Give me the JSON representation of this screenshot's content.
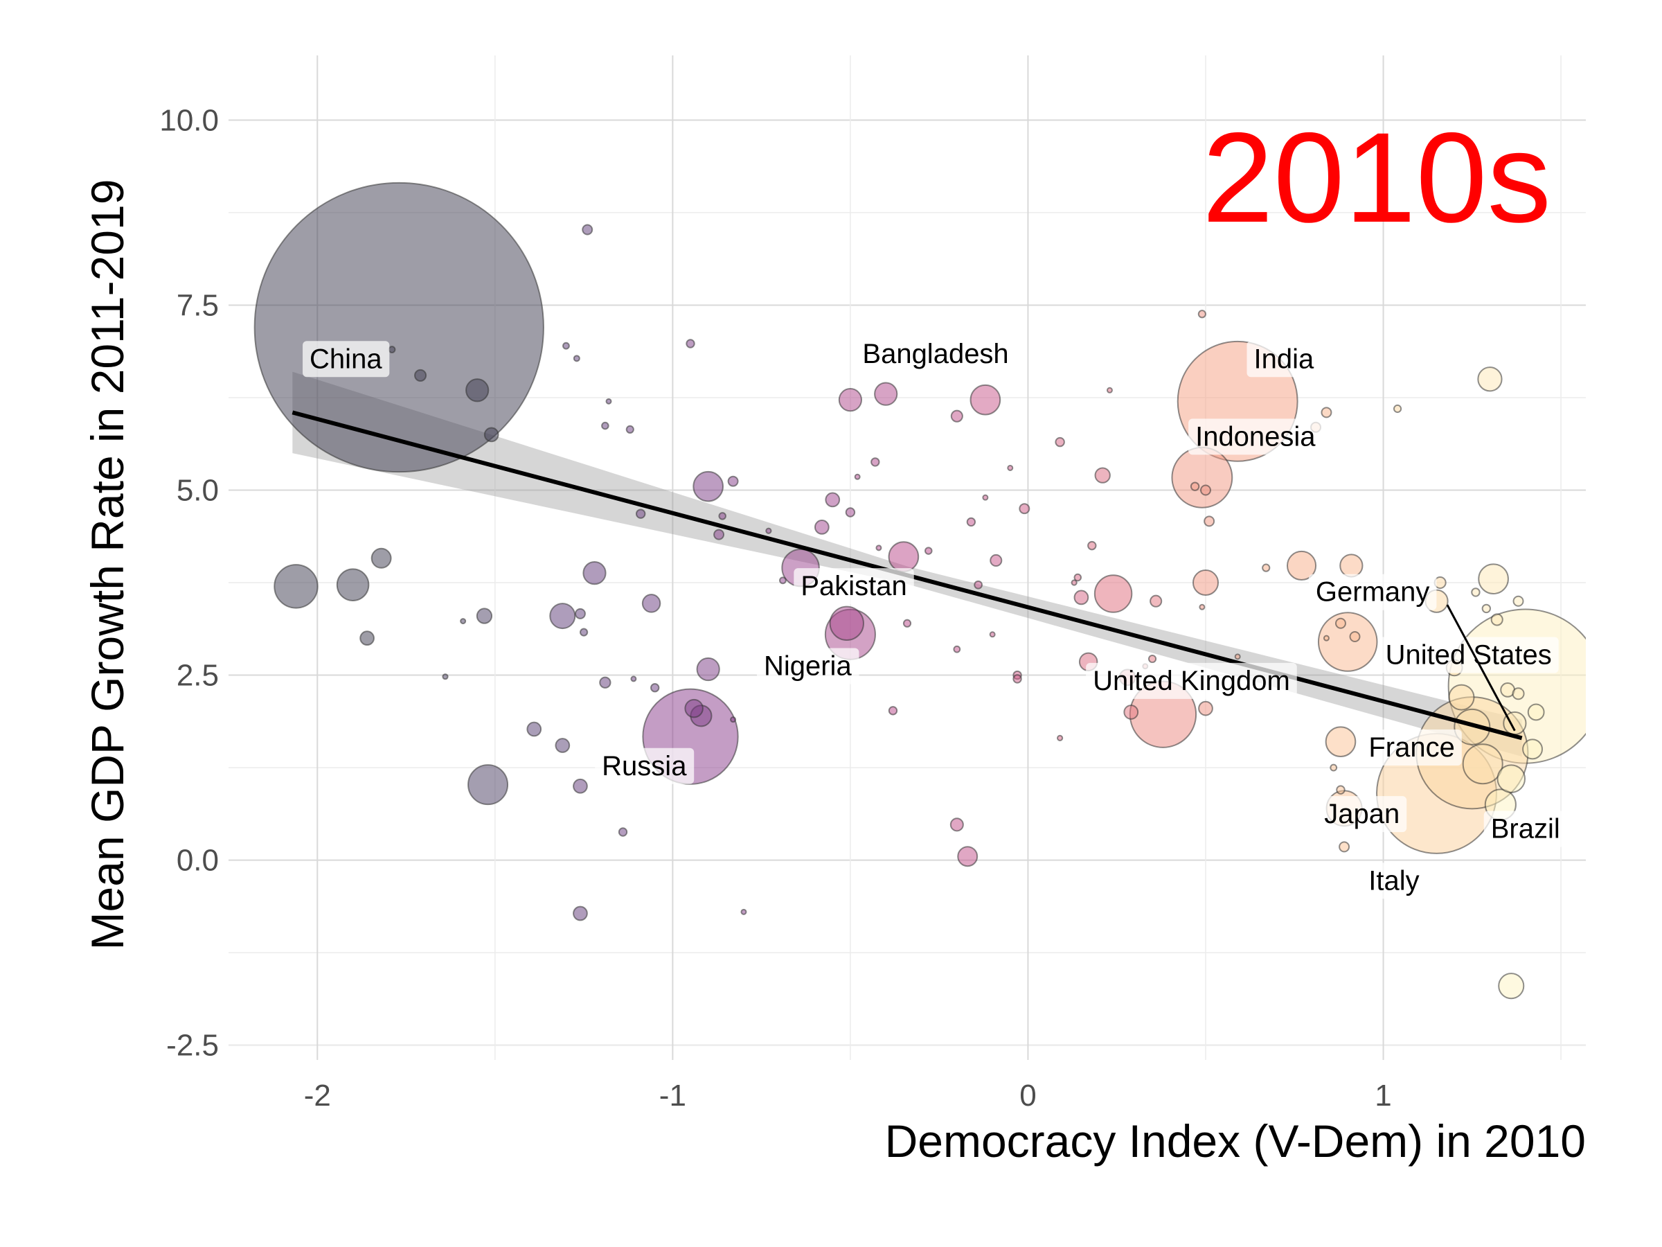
{
  "chart_data": {
    "type": "scatter",
    "title": "",
    "period_label": "2010s",
    "xlabel": "Democracy Index (V-Dem) in 2010",
    "ylabel": "Mean GDP Growth Rate in 2011-2019",
    "xlim": [
      -2.25,
      1.57
    ],
    "ylim": [
      -2.7,
      10.5
    ],
    "x_ticks": [
      -2,
      -1,
      0,
      1
    ],
    "x_tick_labels": [
      "-2",
      "-1",
      "0",
      "1"
    ],
    "y_ticks": [
      -2.5,
      0,
      2.5,
      5,
      7.5,
      10
    ],
    "y_tick_labels": [
      "-2.5",
      "0.0",
      "2.5",
      "5.0",
      "7.5",
      "10.0"
    ],
    "grid": true,
    "point_style": "bubbles sized by population, colored by democracy index, semi-transparent",
    "color_scale": [
      "#3d3b4f",
      "#5e3c78",
      "#8a3c8c",
      "#b9488a",
      "#e06c7c",
      "#f59f82",
      "#fbcf9a",
      "#fdf4c2"
    ],
    "trendline": {
      "type": "linear",
      "x_start": -2.07,
      "y_start": 6.05,
      "x_end": 1.39,
      "y_end": 1.65,
      "ci_start_halfwidth": 0.55,
      "ci_mid_halfwidth": 0.12,
      "ci_end_halfwidth": 0.25
    },
    "labels": [
      {
        "text": "China",
        "x": -1.92,
        "y": 6.65
      },
      {
        "text": "Bangladesh",
        "x": -0.26,
        "y": 6.72
      },
      {
        "text": "India",
        "x": 0.72,
        "y": 6.65
      },
      {
        "text": "Indonesia",
        "x": 0.64,
        "y": 5.6
      },
      {
        "text": "Pakistan",
        "x": -0.49,
        "y": 3.58
      },
      {
        "text": "Germany",
        "x": 0.97,
        "y": 3.5
      },
      {
        "text": "United States",
        "x": 1.24,
        "y": 2.65
      },
      {
        "text": "Nigeria",
        "x": -0.62,
        "y": 2.5
      },
      {
        "text": "United Kingdom",
        "x": 0.46,
        "y": 2.3
      },
      {
        "text": "France",
        "x": 1.08,
        "y": 1.4
      },
      {
        "text": "Russia",
        "x": -1.08,
        "y": 1.15
      },
      {
        "text": "Japan",
        "x": 0.94,
        "y": 0.5
      },
      {
        "text": "Brazil",
        "x": 1.4,
        "y": 0.3
      },
      {
        "text": "Italy",
        "x": 1.03,
        "y": -0.4
      }
    ],
    "points": [
      {
        "name": "China",
        "x": -1.77,
        "y": 7.2,
        "size": 1340,
        "color": "#3d3b4f"
      },
      {
        "x": -1.79,
        "y": 6.9,
        "size": 0.6,
        "color": "#3d3b4f"
      },
      {
        "x": -1.71,
        "y": 6.55,
        "size": 2,
        "color": "#3d3b4f"
      },
      {
        "x": -1.55,
        "y": 6.35,
        "size": 8,
        "color": "#3d3b4f"
      },
      {
        "x": -1.51,
        "y": 5.75,
        "size": 3,
        "color": "#3d3b4f"
      },
      {
        "x": -2.06,
        "y": 3.7,
        "size": 30,
        "color": "#3d3b4f"
      },
      {
        "x": -1.9,
        "y": 3.72,
        "size": 16,
        "color": "#3d3b4f"
      },
      {
        "x": -1.82,
        "y": 4.08,
        "size": 6,
        "color": "#3d3b4f"
      },
      {
        "x": -1.86,
        "y": 3.0,
        "size": 3,
        "color": "#3d3b4f"
      },
      {
        "x": -1.64,
        "y": 2.48,
        "size": 0.4,
        "color": "#4a3d62"
      },
      {
        "x": -1.59,
        "y": 3.23,
        "size": 0.3,
        "color": "#4a3d62"
      },
      {
        "x": -1.53,
        "y": 3.3,
        "size": 3.5,
        "color": "#4a3d62"
      },
      {
        "x": -1.52,
        "y": 1.02,
        "size": 25,
        "color": "#4a3d62"
      },
      {
        "x": -1.39,
        "y": 1.77,
        "size": 3,
        "color": "#553d72"
      },
      {
        "x": -1.31,
        "y": 1.55,
        "size": 3,
        "color": "#553d72"
      },
      {
        "x": -1.31,
        "y": 3.3,
        "size": 10,
        "color": "#5e3c78"
      },
      {
        "x": -1.3,
        "y": 6.95,
        "size": 0.6,
        "color": "#5e3c78"
      },
      {
        "x": -1.27,
        "y": 6.78,
        "size": 0.5,
        "color": "#5e3c78"
      },
      {
        "x": -1.26,
        "y": 3.33,
        "size": 1.5,
        "color": "#5e3c78"
      },
      {
        "x": -1.25,
        "y": 3.08,
        "size": 0.8,
        "color": "#5e3c78"
      },
      {
        "x": -1.24,
        "y": 8.52,
        "size": 1.5,
        "color": "#5e3c78"
      },
      {
        "x": -1.22,
        "y": 3.88,
        "size": 8,
        "color": "#62397a"
      },
      {
        "x": -1.26,
        "y": 1.0,
        "size": 3,
        "color": "#62397a"
      },
      {
        "x": -1.26,
        "y": -0.72,
        "size": 3,
        "color": "#62397a"
      },
      {
        "x": -1.18,
        "y": 6.2,
        "size": 0.2,
        "color": "#62397a"
      },
      {
        "x": -1.19,
        "y": 5.87,
        "size": 0.7,
        "color": "#62397a"
      },
      {
        "x": -1.19,
        "y": 2.4,
        "size": 1.8,
        "color": "#62397a"
      },
      {
        "x": -1.14,
        "y": 0.38,
        "size": 1,
        "color": "#6a3b80"
      },
      {
        "x": -1.12,
        "y": 5.82,
        "size": 0.8,
        "color": "#6a3b80"
      },
      {
        "x": -1.11,
        "y": 2.45,
        "size": 0.3,
        "color": "#6a3b80"
      },
      {
        "x": -1.09,
        "y": 4.68,
        "size": 1.2,
        "color": "#6a3b80"
      },
      {
        "x": -1.06,
        "y": 3.47,
        "size": 5,
        "color": "#6a3b80"
      },
      {
        "x": -1.05,
        "y": 2.33,
        "size": 1,
        "color": "#6a3b80"
      },
      {
        "name": "Russia",
        "x": -0.95,
        "y": 1.67,
        "size": 145,
        "color": "#8a3c8c"
      },
      {
        "x": -0.95,
        "y": 6.98,
        "size": 1,
        "color": "#7c3c86"
      },
      {
        "x": -0.94,
        "y": 2.05,
        "size": 5,
        "color": "#7c3c86"
      },
      {
        "x": -0.92,
        "y": 1.95,
        "size": 7,
        "color": "#7c3c86"
      },
      {
        "x": -0.9,
        "y": 5.05,
        "size": 14,
        "color": "#7c3c86"
      },
      {
        "x": -0.9,
        "y": 2.58,
        "size": 8,
        "color": "#7c3c86"
      },
      {
        "x": -0.87,
        "y": 4.4,
        "size": 1.5,
        "color": "#843c88"
      },
      {
        "x": -0.86,
        "y": 4.65,
        "size": 0.7,
        "color": "#843c88"
      },
      {
        "x": -0.83,
        "y": 5.12,
        "size": 1.5,
        "color": "#843c88"
      },
      {
        "x": -0.83,
        "y": 1.9,
        "size": 0.3,
        "color": "#843c88"
      },
      {
        "x": -0.8,
        "y": -0.7,
        "size": 0.2,
        "color": "#843c88"
      },
      {
        "x": -0.73,
        "y": 4.45,
        "size": 0.4,
        "color": "#8e3f8e"
      },
      {
        "x": -0.69,
        "y": 3.78,
        "size": 0.6,
        "color": "#8e3f8e"
      },
      {
        "name": "Pakistan",
        "x": -0.64,
        "y": 3.95,
        "size": 22,
        "color": "#9a428e"
      },
      {
        "x": -0.58,
        "y": 4.5,
        "size": 3,
        "color": "#a0448e"
      },
      {
        "x": -0.55,
        "y": 4.87,
        "size": 3,
        "color": "#a0448e"
      },
      {
        "x": -0.5,
        "y": 4.7,
        "size": 1.2,
        "color": "#a0448e"
      },
      {
        "name": "Nigeria",
        "x": -0.5,
        "y": 3.05,
        "size": 40,
        "color": "#a8468c"
      },
      {
        "x": -0.51,
        "y": 3.2,
        "size": 18,
        "color": "#a8468c"
      },
      {
        "x": -0.5,
        "y": 6.22,
        "size": 8,
        "color": "#b0488c"
      },
      {
        "name": "Bangladesh",
        "x": -0.4,
        "y": 6.3,
        "size": 8,
        "color": "#b0488c"
      },
      {
        "x": -0.48,
        "y": 5.18,
        "size": 0.3,
        "color": "#b0488c"
      },
      {
        "x": -0.43,
        "y": 5.38,
        "size": 1,
        "color": "#b0488c"
      },
      {
        "x": -0.42,
        "y": 4.22,
        "size": 0.3,
        "color": "#b0488c"
      },
      {
        "x": -0.35,
        "y": 4.1,
        "size": 14,
        "color": "#b9488a"
      },
      {
        "x": -0.38,
        "y": 2.02,
        "size": 1,
        "color": "#b9488a"
      },
      {
        "x": -0.34,
        "y": 3.2,
        "size": 0.8,
        "color": "#b9488a"
      },
      {
        "x": -0.28,
        "y": 4.18,
        "size": 0.7,
        "color": "#b9488a"
      },
      {
        "x": -0.2,
        "y": 6.0,
        "size": 2,
        "color": "#c2508a"
      },
      {
        "x": -0.2,
        "y": 2.85,
        "size": 0.6,
        "color": "#c2508a"
      },
      {
        "x": -0.2,
        "y": 0.48,
        "size": 2.5,
        "color": "#c2508a"
      },
      {
        "x": -0.17,
        "y": 0.05,
        "size": 6,
        "color": "#c2508a"
      },
      {
        "x": -0.16,
        "y": 4.57,
        "size": 1,
        "color": "#c2508a"
      },
      {
        "x": -0.14,
        "y": 3.72,
        "size": 0.9,
        "color": "#c2508a"
      },
      {
        "x": -0.12,
        "y": 6.22,
        "size": 14,
        "color": "#c8568a"
      },
      {
        "x": -0.12,
        "y": 4.9,
        "size": 0.3,
        "color": "#c8568a"
      },
      {
        "x": -0.1,
        "y": 3.05,
        "size": 0.2,
        "color": "#c8568a"
      },
      {
        "x": -0.09,
        "y": 4.05,
        "size": 2,
        "color": "#c8568a"
      },
      {
        "x": -0.05,
        "y": 5.3,
        "size": 0.15,
        "color": "#c8568a"
      },
      {
        "x": -0.03,
        "y": 2.5,
        "size": 1,
        "color": "#cf5c88"
      },
      {
        "x": -0.03,
        "y": 2.45,
        "size": 1,
        "color": "#cf5c88"
      },
      {
        "x": -0.01,
        "y": 4.75,
        "size": 1.5,
        "color": "#cf5c88"
      },
      {
        "x": 0.09,
        "y": 5.65,
        "size": 1.2,
        "color": "#d66484"
      },
      {
        "x": 0.09,
        "y": 1.65,
        "size": 0.4,
        "color": "#d66484"
      },
      {
        "x": 0.13,
        "y": 3.75,
        "size": 0.4,
        "color": "#d66484"
      },
      {
        "x": 0.14,
        "y": 3.82,
        "size": 0.7,
        "color": "#d66484"
      },
      {
        "x": 0.15,
        "y": 3.55,
        "size": 3,
        "color": "#d66484"
      },
      {
        "x": 0.17,
        "y": 2.68,
        "size": 5,
        "color": "#db6a80"
      },
      {
        "x": 0.18,
        "y": 4.25,
        "size": 1,
        "color": "#db6a80"
      },
      {
        "x": 0.21,
        "y": 5.2,
        "size": 3.5,
        "color": "#db6a80"
      },
      {
        "x": 0.23,
        "y": 6.35,
        "size": 0.3,
        "color": "#db6a80"
      },
      {
        "x": 0.24,
        "y": 3.6,
        "size": 22,
        "color": "#e06c7c"
      },
      {
        "x": 0.28,
        "y": 2.47,
        "size": 4,
        "color": "#e47680"
      },
      {
        "x": 0.29,
        "y": 2.0,
        "size": 3,
        "color": "#e47680"
      },
      {
        "x": 0.33,
        "y": 2.62,
        "size": 0.2,
        "color": "#e47680"
      },
      {
        "x": 0.35,
        "y": 2.72,
        "size": 0.8,
        "color": "#e47680"
      },
      {
        "x": 0.36,
        "y": 3.5,
        "size": 2,
        "color": "#e47680"
      },
      {
        "name": "United Kingdom",
        "x": 0.38,
        "y": 1.97,
        "size": 70,
        "color": "#ec8880"
      },
      {
        "x": 0.49,
        "y": 3.42,
        "size": 0.15,
        "color": "#ee9080"
      },
      {
        "x": 0.5,
        "y": 2.05,
        "size": 3,
        "color": "#ee9080"
      },
      {
        "x": 0.49,
        "y": 7.38,
        "size": 0.8,
        "color": "#ee9080"
      },
      {
        "x": 0.5,
        "y": 5.0,
        "size": 1.5,
        "color": "#ee9080"
      },
      {
        "name": "Indonesia",
        "x": 0.49,
        "y": 5.17,
        "size": 58,
        "color": "#f29882"
      },
      {
        "x": 0.47,
        "y": 5.05,
        "size": 1,
        "color": "#f29882"
      },
      {
        "x": 0.51,
        "y": 4.58,
        "size": 1.5,
        "color": "#f29882"
      },
      {
        "x": 0.5,
        "y": 3.75,
        "size": 10,
        "color": "#f29882"
      },
      {
        "name": "India",
        "x": 0.59,
        "y": 6.2,
        "size": 230,
        "color": "#f59f82"
      },
      {
        "x": 0.59,
        "y": 2.75,
        "size": 0.15,
        "color": "#f59f82"
      },
      {
        "x": 0.67,
        "y": 3.95,
        "size": 0.8,
        "color": "#f8ad88"
      },
      {
        "x": 0.77,
        "y": 3.98,
        "size": 13,
        "color": "#f8ad88"
      },
      {
        "x": 0.81,
        "y": 5.85,
        "size": 1.5,
        "color": "#f8b48c"
      },
      {
        "x": 0.84,
        "y": 6.05,
        "size": 1.5,
        "color": "#f8b48c"
      },
      {
        "x": 0.84,
        "y": 3.0,
        "size": 0.3,
        "color": "#f8b48c"
      },
      {
        "name": "Germany",
        "x": 0.9,
        "y": 2.95,
        "size": 55,
        "color": "#fab890"
      },
      {
        "x": 0.88,
        "y": 3.2,
        "size": 1.5,
        "color": "#fab890"
      },
      {
        "x": 0.91,
        "y": 3.98,
        "size": 8,
        "color": "#fab890"
      },
      {
        "x": 0.92,
        "y": 3.02,
        "size": 1.5,
        "color": "#fab890"
      },
      {
        "name": "Japan",
        "x": 0.89,
        "y": 0.7,
        "size": 20,
        "color": "#fbc294"
      },
      {
        "x": 0.88,
        "y": 1.6,
        "size": 14,
        "color": "#fbc294"
      },
      {
        "x": 0.86,
        "y": 1.25,
        "size": 0.6,
        "color": "#fbc294"
      },
      {
        "x": 0.88,
        "y": 0.95,
        "size": 1,
        "color": "#fbc294"
      },
      {
        "x": 0.89,
        "y": 0.18,
        "size": 1.5,
        "color": "#fbc294"
      },
      {
        "name": "Italy",
        "x": 1.15,
        "y": 0.9,
        "size": 230,
        "color": "#fbcf9a"
      },
      {
        "name": "France",
        "x": 1.25,
        "y": 1.45,
        "size": 200,
        "color": "#fcd8a2"
      },
      {
        "x": 1.04,
        "y": 6.1,
        "size": 0.8,
        "color": "#fcd8a2"
      },
      {
        "x": 1.15,
        "y": 3.5,
        "size": 8,
        "color": "#fcd8a2"
      },
      {
        "x": 1.16,
        "y": 3.75,
        "size": 2,
        "color": "#fcd8a2"
      },
      {
        "x": 1.2,
        "y": 2.6,
        "size": 4,
        "color": "#fcdca8"
      },
      {
        "x": 1.22,
        "y": 2.2,
        "size": 10,
        "color": "#fcdca8"
      },
      {
        "x": 1.25,
        "y": 1.8,
        "size": 20,
        "color": "#fce0ae"
      },
      {
        "x": 1.28,
        "y": 1.3,
        "size": 25,
        "color": "#fce0ae"
      },
      {
        "x": 1.3,
        "y": 6.5,
        "size": 9,
        "color": "#fde8b6"
      },
      {
        "x": 1.31,
        "y": 3.8,
        "size": 14,
        "color": "#fde8b6"
      },
      {
        "x": 1.26,
        "y": 3.62,
        "size": 1,
        "color": "#fde8b6"
      },
      {
        "x": 1.29,
        "y": 3.4,
        "size": 1,
        "color": "#fde8b6"
      },
      {
        "x": 1.32,
        "y": 3.25,
        "size": 2,
        "color": "#fde8b6"
      },
      {
        "x": 1.38,
        "y": 3.5,
        "size": 1.5,
        "color": "#fdecbc"
      },
      {
        "x": 1.35,
        "y": 2.3,
        "size": 3,
        "color": "#fdecbc"
      },
      {
        "x": 1.37,
        "y": 1.85,
        "size": 8,
        "color": "#fdecbc"
      },
      {
        "x": 1.38,
        "y": 2.25,
        "size": 2,
        "color": "#fdecbc"
      },
      {
        "name": "United States",
        "x": 1.4,
        "y": 2.35,
        "size": 380,
        "color": "#fdf0c0"
      },
      {
        "name": "Brazil",
        "x": 1.36,
        "y": 1.1,
        "size": 12,
        "color": "#fdf4c2"
      },
      {
        "x": 1.33,
        "y": 0.75,
        "size": 15,
        "color": "#fdf4c2"
      },
      {
        "x": 1.36,
        "y": -1.7,
        "size": 10,
        "color": "#fdf4c2"
      },
      {
        "x": 1.42,
        "y": 1.5,
        "size": 6,
        "color": "#fdf4c2"
      },
      {
        "x": 1.43,
        "y": 2.0,
        "size": 4,
        "color": "#fdf4c2"
      }
    ]
  }
}
